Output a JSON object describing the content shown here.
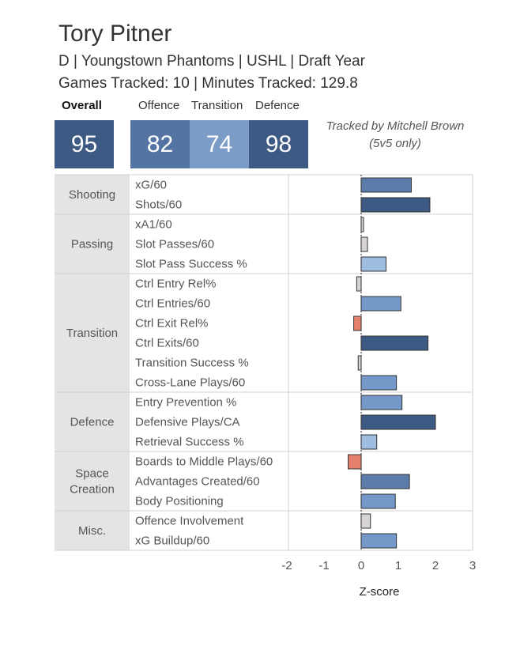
{
  "player": {
    "name": "Tory Pitner",
    "subtitle": "D | Youngstown Phantoms | USHL | Draft Year",
    "tracking": "Games Tracked: 10 | Minutes Tracked: 129.8"
  },
  "scores": {
    "overall_label": "Overall",
    "overall": "95",
    "offence_label": "Offence",
    "offence": "82",
    "transition_label": "Transition",
    "transition": "74",
    "defence_label": "Defence",
    "defence": "98"
  },
  "tracked_by": {
    "line1": "Tracked by Mitchell Brown",
    "line2": "(5v5 only)"
  },
  "colors": {
    "overall_box": "#3d5a85",
    "offence_box": "#5475a3",
    "transition_box": "#7b9cc7",
    "defence_box": "#3d5a85",
    "category_bg": "#e4e4e4",
    "negative": "#e4806b",
    "neutral": "#d9d4d4",
    "light": "#9ebde1",
    "mid": "#7499c9",
    "strong": "#5b7bab",
    "darkest": "#3d5a85"
  },
  "chart_data": {
    "type": "bar",
    "orientation": "horizontal",
    "xlabel": "Z-score",
    "xlim": [
      -2,
      3
    ],
    "xticks": [
      "-2",
      "-1",
      "0",
      "1",
      "2",
      "3"
    ],
    "groups": [
      {
        "name": "Shooting",
        "metrics": [
          {
            "label": "xG/60",
            "value": 1.35
          },
          {
            "label": "Shots/60",
            "value": 1.85
          }
        ]
      },
      {
        "name": "Passing",
        "metrics": [
          {
            "label": "xA1/60",
            "value": 0.03
          },
          {
            "label": "Slot Passes/60",
            "value": 0.17
          },
          {
            "label": "Slot Pass Success %",
            "value": 0.67
          }
        ]
      },
      {
        "name": "Transition",
        "metrics": [
          {
            "label": "Ctrl Entry Rel%",
            "value": -0.12
          },
          {
            "label": "Ctrl Entries/60",
            "value": 1.07
          },
          {
            "label": "Ctrl Exit Rel%",
            "value": -0.2
          },
          {
            "label": "Ctrl Exits/60",
            "value": 1.8
          },
          {
            "label": "Transition Success %",
            "value": -0.08
          },
          {
            "label": "Cross-Lane Plays/60",
            "value": 0.95
          }
        ]
      },
      {
        "name": "Defence",
        "metrics": [
          {
            "label": "Entry Prevention %",
            "value": 1.1
          },
          {
            "label": "Defensive Plays/CA",
            "value": 2.0
          },
          {
            "label": "Retrieval Success %",
            "value": 0.42
          }
        ]
      },
      {
        "name": "Space Creation",
        "metrics": [
          {
            "label": "Boards to Middle Plays/60",
            "value": -0.35
          },
          {
            "label": "Advantages Created/60",
            "value": 1.3
          },
          {
            "label": "Body Positioning",
            "value": 0.92
          }
        ]
      },
      {
        "name": "Misc.",
        "metrics": [
          {
            "label": "Offence Involvement",
            "value": 0.25
          },
          {
            "label": "xG Buildup/60",
            "value": 0.95
          }
        ]
      }
    ]
  }
}
